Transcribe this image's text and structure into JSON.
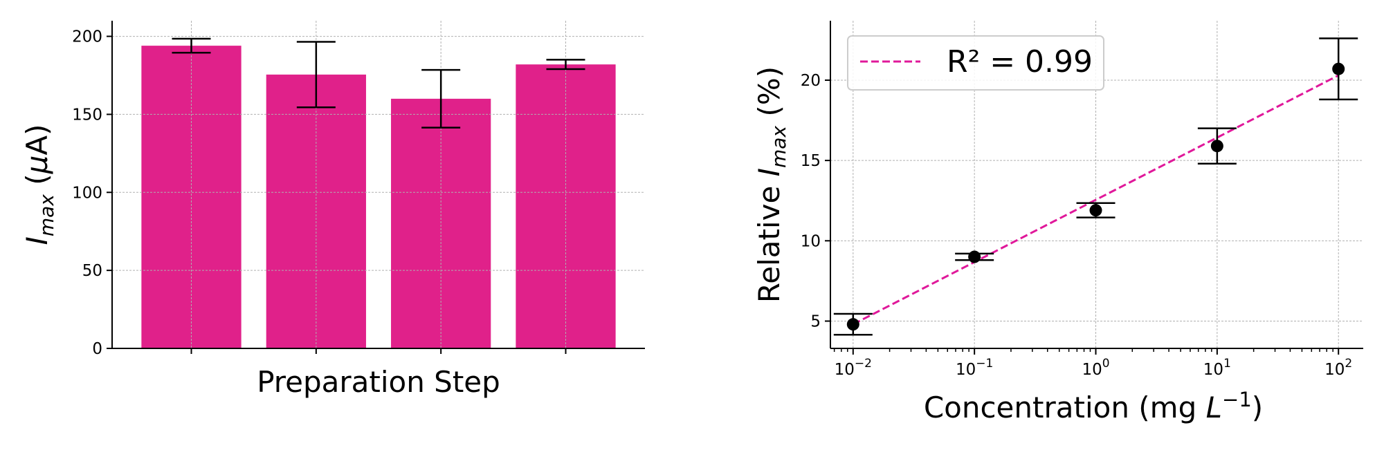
{
  "chart_data": [
    {
      "type": "bar",
      "xlabel": "Preparation Step",
      "ylabel": "I_max (μA)",
      "ylabel_parts": [
        "I",
        "max",
        " (",
        "μ",
        "A)"
      ],
      "categories": [
        "",
        "",
        "",
        ""
      ],
      "values": [
        194,
        175.5,
        160,
        182
      ],
      "errors": [
        4.5,
        21,
        18.5,
        3
      ],
      "ylim": [
        0,
        210
      ],
      "yticks": [
        0,
        50,
        100,
        150,
        200
      ],
      "grid": true,
      "bar_color": "#e0218a"
    },
    {
      "type": "scatter",
      "xlabel": "Concentration (mg L^-1)",
      "xlabel_parts": [
        "Concentration (mg ",
        "L",
        "−1",
        ")"
      ],
      "ylabel": "Relative I_max (%)",
      "ylabel_parts": [
        "Relative ",
        "I",
        "max",
        " (%)"
      ],
      "x": [
        0.01,
        0.1,
        1,
        10,
        100
      ],
      "y": [
        4.8,
        9.0,
        11.9,
        15.9,
        20.7
      ],
      "errors": [
        0.65,
        0.2,
        0.45,
        1.1,
        1.9
      ],
      "xscale": "log",
      "xlim": [
        0.0065,
        160
      ],
      "ylim": [
        3.3,
        23.7
      ],
      "xticks": [
        0.01,
        0.1,
        1,
        10,
        100
      ],
      "xtick_labels": [
        [
          "10",
          "−2"
        ],
        [
          "10",
          "−1"
        ],
        [
          "10",
          "0"
        ],
        [
          "10",
          "1"
        ],
        [
          "10",
          "2"
        ]
      ],
      "yticks": [
        5,
        10,
        15,
        20
      ],
      "grid": true,
      "fit": {
        "label": "R² = 0.99",
        "x_range": [
          0.01,
          100
        ],
        "y_range": [
          4.8,
          20.3
        ],
        "color": "#e0189a",
        "style": "dashed"
      },
      "legend_position": "upper-left",
      "marker_color": "#000000"
    }
  ]
}
